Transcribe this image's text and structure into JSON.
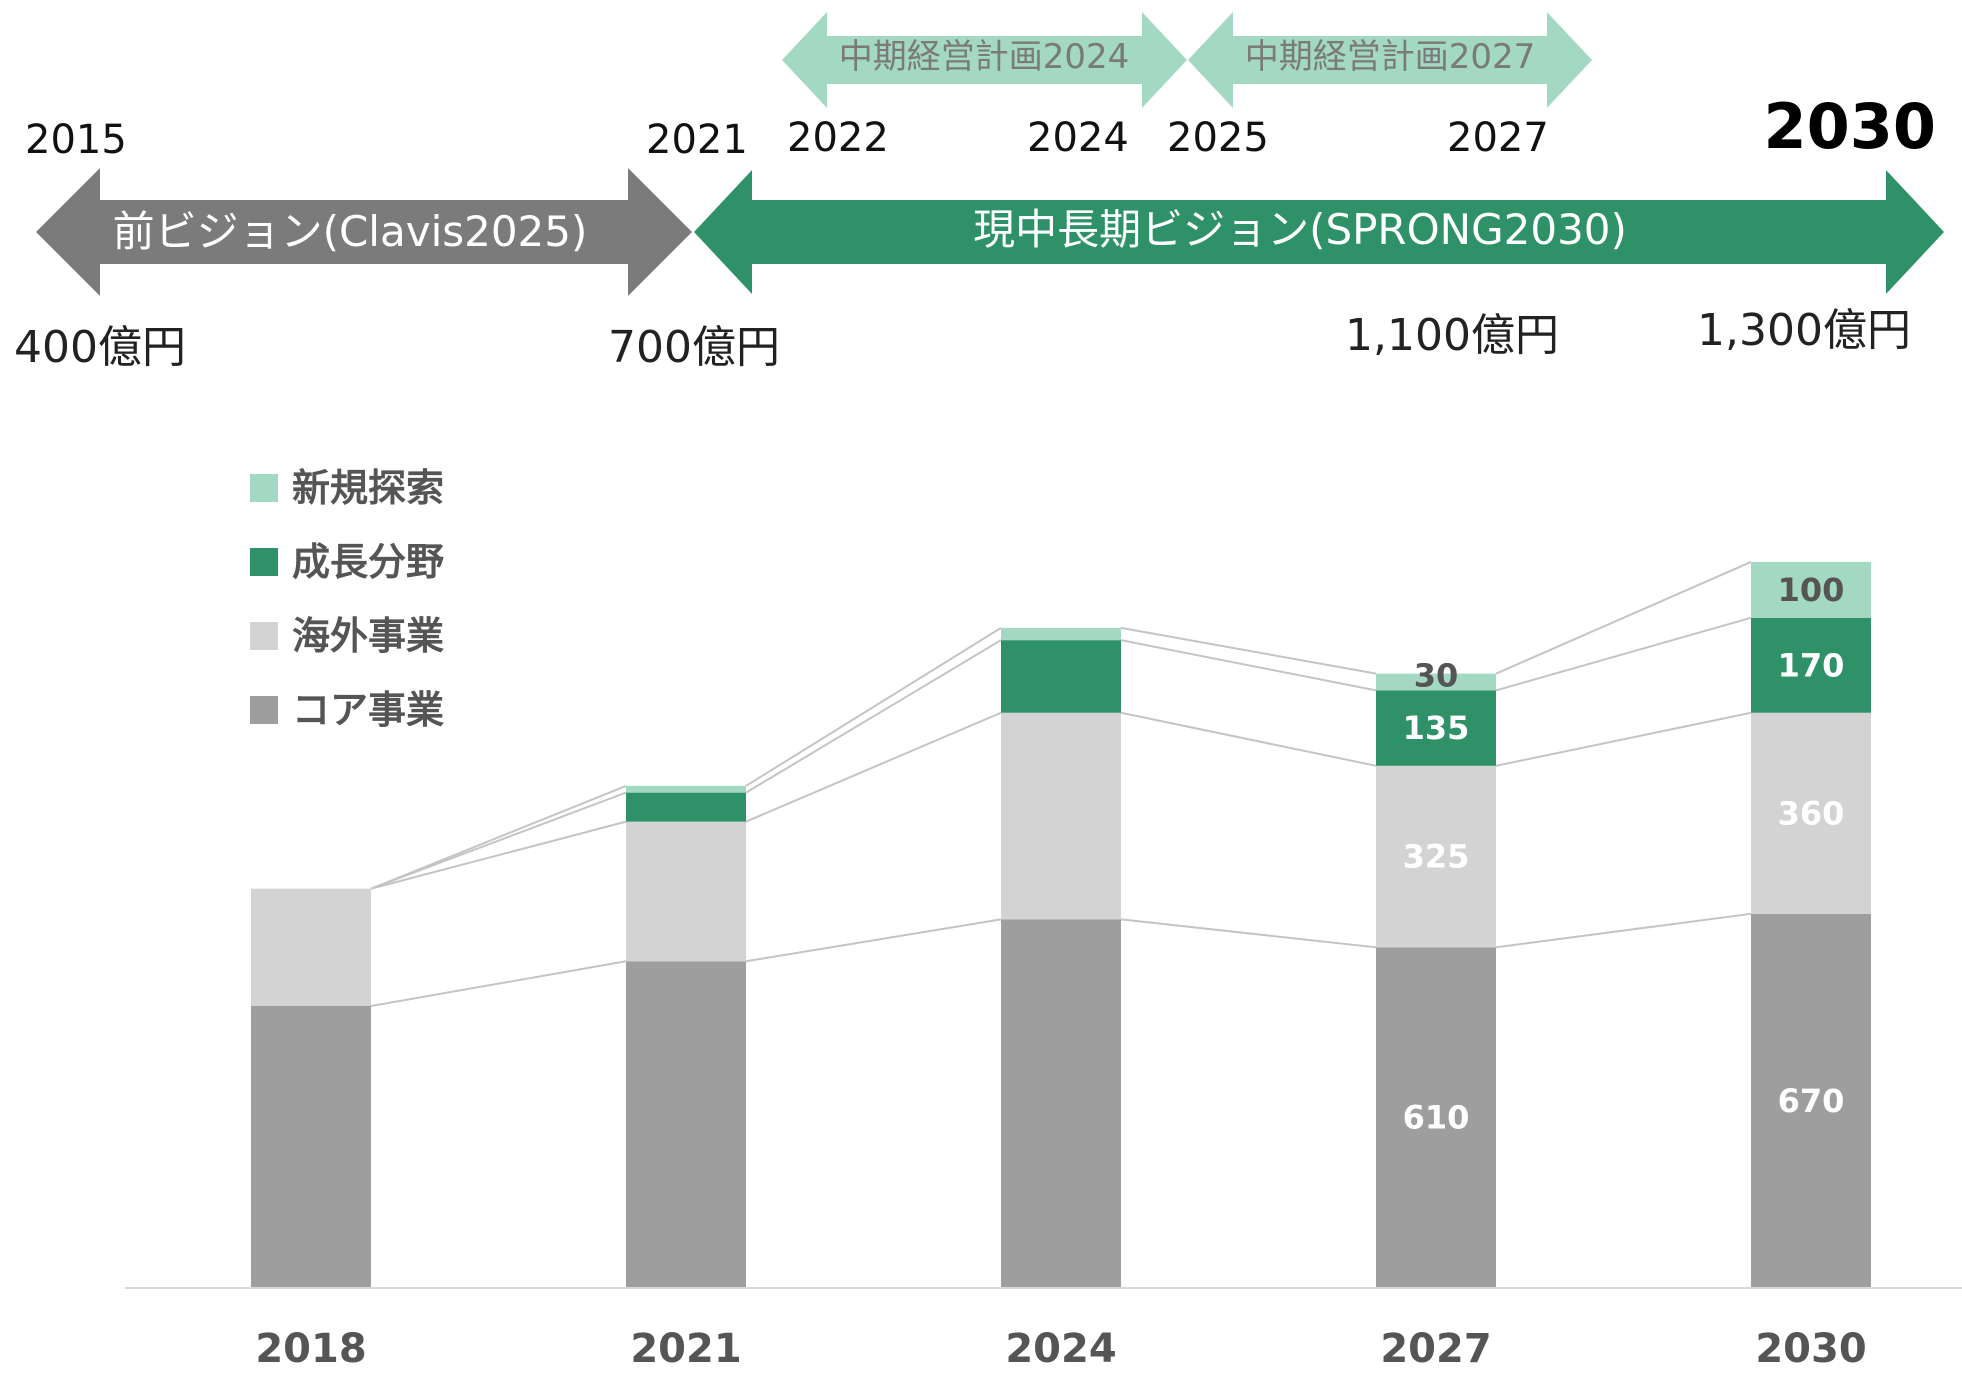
{
  "timeline": {
    "prev_vision": {
      "label": "前ビジョン(Clavis2025)",
      "start_year": "2015",
      "end_year": "2021",
      "start_amount": "400億円",
      "end_amount": "700億円"
    },
    "current_vision": {
      "label": "現中長期ビジョン(SPRONG2030)",
      "end_year": "2030"
    },
    "plan_2024": {
      "label": "中期経営計画2024",
      "start_year": "2022",
      "end_year": "2024"
    },
    "plan_2027": {
      "label": "中期経営計画2027",
      "start_year": "2025",
      "end_year": "2027"
    },
    "target_2027": "1,100億円",
    "target_2030": "1,300億円"
  },
  "colors": {
    "core": "#9e9e9e",
    "overseas": "#d3d3d3",
    "growth": "#2e9168",
    "explore": "#a3d8c3",
    "prev_arrow": "#7b7b7b",
    "vision_arrow": "#2e9168",
    "plan_arrow": "#a3d8c3"
  },
  "chart_data": {
    "type": "bar",
    "stacked": true,
    "categories": [
      "2018",
      "2021",
      "2024",
      "2027",
      "2030"
    ],
    "series": [
      {
        "name": "コア事業",
        "color": "#9e9e9e",
        "values": [
          505,
          585,
          660,
          610,
          670
        ]
      },
      {
        "name": "海外事業",
        "color": "#d3d3d3",
        "values": [
          210,
          250,
          370,
          325,
          360
        ]
      },
      {
        "name": "成長分野",
        "color": "#2e9168",
        "values": [
          0,
          52,
          130,
          135,
          170
        ]
      },
      {
        "name": "新規探索",
        "color": "#a3d8c3",
        "values": [
          0,
          12,
          22,
          30,
          100
        ]
      }
    ],
    "data_labels": [
      {
        "category": "2027",
        "series": "コア事業",
        "text": "610"
      },
      {
        "category": "2027",
        "series": "海外事業",
        "text": "325"
      },
      {
        "category": "2027",
        "series": "成長分野",
        "text": "135"
      },
      {
        "category": "2027",
        "series": "新規探索",
        "text": "30"
      },
      {
        "category": "2030",
        "series": "コア事業",
        "text": "670"
      },
      {
        "category": "2030",
        "series": "海外事業",
        "text": "360"
      },
      {
        "category": "2030",
        "series": "成長分野",
        "text": "170"
      },
      {
        "category": "2030",
        "series": "新規探索",
        "text": "100"
      }
    ],
    "legend": {
      "position": "top-left",
      "order": [
        "新規探索",
        "成長分野",
        "海外事業",
        "コア事業"
      ]
    },
    "connector_lines": true,
    "ylim": [
      0,
      1400
    ],
    "grid": false
  }
}
